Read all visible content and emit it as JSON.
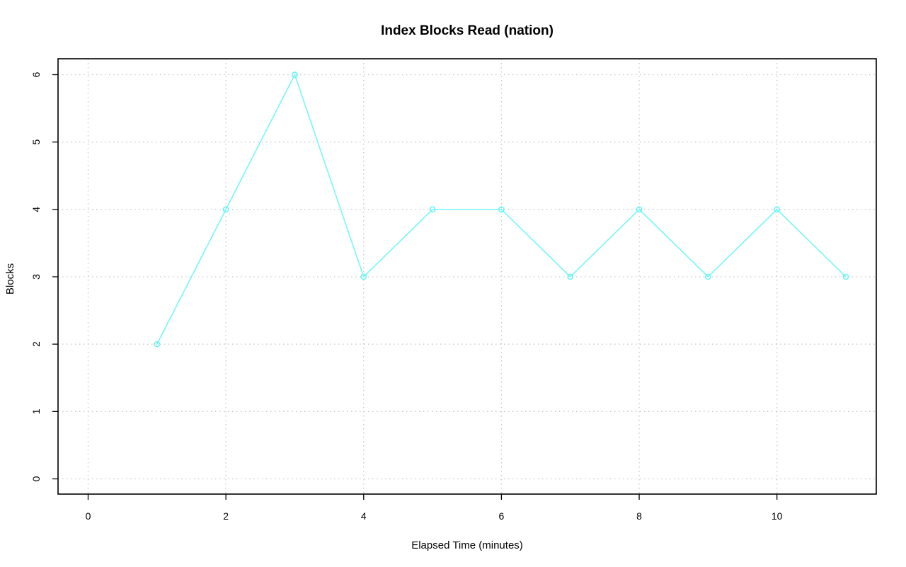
{
  "chart_data": {
    "type": "line",
    "title": "Index Blocks Read (nation)",
    "xlabel": "Elapsed Time (minutes)",
    "ylabel": "Blocks",
    "xlim": [
      0,
      11
    ],
    "ylim": [
      0,
      6
    ],
    "x_ticks": [
      0,
      2,
      4,
      6,
      8,
      10
    ],
    "y_ticks": [
      0,
      1,
      2,
      3,
      4,
      5,
      6
    ],
    "grid": true,
    "series": [
      {
        "color": "#7ff6f6",
        "marker": "open-circle",
        "x": [
          1,
          2,
          3,
          4,
          5,
          6,
          7,
          8,
          9,
          10,
          11
        ],
        "y": [
          2,
          4,
          6,
          3,
          4,
          4,
          3,
          4,
          3,
          4,
          3
        ]
      }
    ]
  }
}
